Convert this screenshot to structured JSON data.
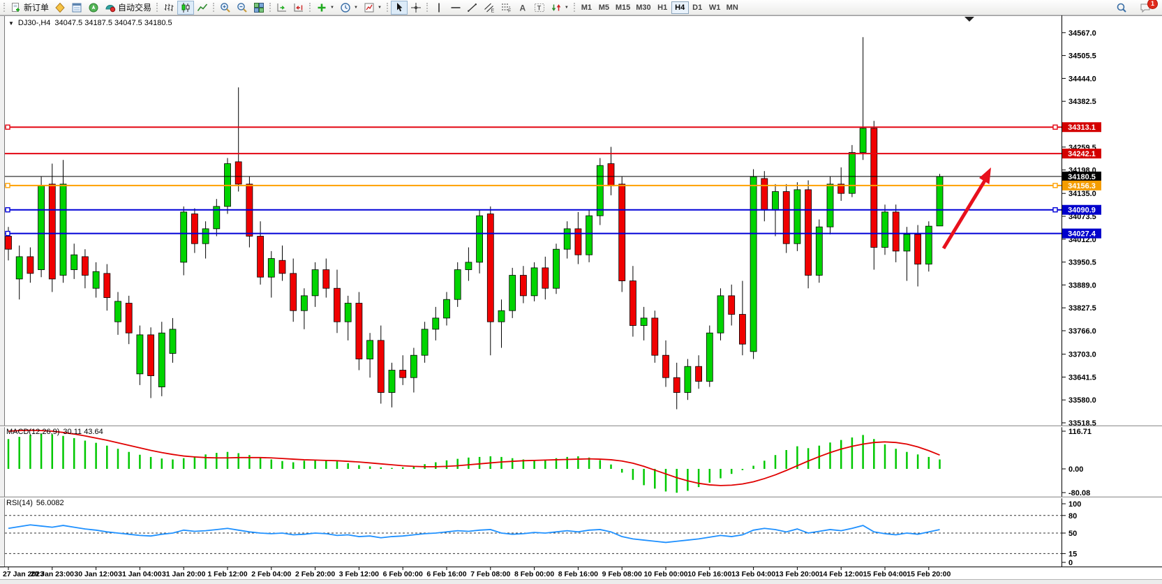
{
  "toolbar": {
    "groups": [
      {
        "buttons": [
          {
            "name": "new-order-button",
            "icon": "new-order",
            "label": "新订单"
          },
          {
            "name": "market-watch-button",
            "icon": "market-watch"
          },
          {
            "name": "data-window-button",
            "icon": "data-window"
          },
          {
            "name": "navigator-button",
            "icon": "navigator"
          },
          {
            "name": "auto-trading-button",
            "icon": "auto-trading",
            "label": "自动交易"
          }
        ]
      },
      {
        "buttons": [
          {
            "name": "bar-chart-button",
            "icon": "bars-chart"
          },
          {
            "name": "candlestick-chart-button",
            "icon": "candles-chart",
            "active": true
          },
          {
            "name": "line-chart-button",
            "icon": "line-chart"
          }
        ]
      },
      {
        "buttons": [
          {
            "name": "zoom-in-button",
            "icon": "zoom-in"
          },
          {
            "name": "zoom-out-button",
            "icon": "zoom-out"
          },
          {
            "name": "tile-windows-button",
            "icon": "tile-windows"
          }
        ]
      },
      {
        "buttons": [
          {
            "name": "auto-scroll-button",
            "icon": "auto-scroll"
          },
          {
            "name": "chart-shift-button",
            "icon": "chart-shift"
          }
        ]
      },
      {
        "buttons": [
          {
            "name": "indicators-button",
            "icon": "indicators",
            "caret": true
          },
          {
            "name": "periods-button",
            "icon": "periods",
            "caret": true
          },
          {
            "name": "templates-button",
            "icon": "templates",
            "caret": true
          }
        ]
      },
      {
        "buttons": [
          {
            "name": "cursor-button",
            "icon": "cursor",
            "active": true
          },
          {
            "name": "crosshair-button",
            "icon": "crosshair"
          }
        ]
      },
      {
        "buttons": [
          {
            "name": "vertical-line-button",
            "icon": "vertical-line"
          },
          {
            "name": "horizontal-line-button",
            "icon": "horizontal-line"
          },
          {
            "name": "trendline-button",
            "icon": "trendline"
          },
          {
            "name": "equidistant-channel-button",
            "icon": "equidistant-channel"
          },
          {
            "name": "fibonacci-button",
            "icon": "fibonacci"
          },
          {
            "name": "text-button",
            "icon": "text"
          },
          {
            "name": "text-label-button",
            "icon": "text-label"
          },
          {
            "name": "arrows-button",
            "icon": "shapes",
            "caret": true
          }
        ]
      }
    ],
    "timeframes": {
      "items": [
        "M1",
        "M5",
        "M15",
        "M30",
        "H1",
        "H4",
        "D1",
        "W1",
        "MN"
      ],
      "active": "H4"
    },
    "right": [
      {
        "name": "search-button",
        "icon": "search"
      },
      {
        "name": "chat-button",
        "icon": "chat",
        "badge": "1"
      }
    ]
  },
  "chart_header": {
    "dropdown_glyph": "▼",
    "symbol_period": "DJ30-,H4",
    "ohlc": "34047.5 34187.5 34047.5 34180.5"
  },
  "price_axis": {
    "ticks": [
      "34567.0",
      "34505.5",
      "34444.0",
      "34382.5",
      "34259.5",
      "34198.0",
      "34135.0",
      "34073.5",
      "34012.0",
      "33950.5",
      "33889.0",
      "33827.5",
      "33766.0",
      "33703.0",
      "33641.5",
      "33580.0",
      "33518.5"
    ]
  },
  "lines": [
    {
      "price": 34313.1,
      "label": "34313.1",
      "color": "#e30613",
      "width": 2,
      "label_bg": "#d40000",
      "handles": "both"
    },
    {
      "price": 34242.1,
      "label": "34242.1",
      "color": "#e30613",
      "width": 2,
      "label_bg": "#d40000",
      "handles": "none"
    },
    {
      "price": 34180.5,
      "label": "34180.5",
      "color": "#000000",
      "width": 1,
      "label_bg": "#000000",
      "handles": "none"
    },
    {
      "price": 34156.3,
      "label": "34156.3",
      "color": "#ffa000",
      "width": 2,
      "label_bg": "#f59d00",
      "handles": "both"
    },
    {
      "price": 34090.9,
      "label": "34090.9",
      "color": "#0000d8",
      "width": 2,
      "label_bg": "#0000cc",
      "handles": "both"
    },
    {
      "price": 34027.4,
      "label": "34027.4",
      "color": "#0000d8",
      "width": 2,
      "label_bg": "#0000cc",
      "handles": "left"
    }
  ],
  "chart_data": {
    "type": "candlestick",
    "symbol": "DJ30-",
    "timeframe": "H4",
    "x_labels": [
      "27 Jan 2023",
      "29 Jan 23:00",
      "30 Jan 12:00",
      "31 Jan 04:00",
      "31 Jan 20:00",
      "1 Feb 12:00",
      "2 Feb 04:00",
      "2 Feb 20:00",
      "3 Feb 12:00",
      "6 Feb 00:00",
      "6 Feb 16:00",
      "7 Feb 08:00",
      "8 Feb 00:00",
      "8 Feb 16:00",
      "9 Feb 08:00",
      "10 Feb 00:00",
      "10 Feb 16:00",
      "13 Feb 04:00",
      "13 Feb 20:00",
      "14 Feb 12:00",
      "15 Feb 04:00",
      "15 Feb 20:00"
    ],
    "x_label_every": 4,
    "ylim": [
      33470,
      34610
    ],
    "grid": false,
    "candles": [
      [
        34020,
        34045,
        33955,
        33985
      ],
      [
        33905,
        33995,
        33850,
        33965
      ],
      [
        33965,
        33990,
        33895,
        33920
      ],
      [
        33930,
        34180,
        33910,
        34155
      ],
      [
        34160,
        34215,
        33870,
        33905
      ],
      [
        33915,
        34225,
        33895,
        34160
      ],
      [
        33930,
        34000,
        33905,
        33970
      ],
      [
        33965,
        33985,
        33880,
        33915
      ],
      [
        33880,
        33950,
        33855,
        33925
      ],
      [
        33920,
        33945,
        33820,
        33855
      ],
      [
        33790,
        33870,
        33755,
        33845
      ],
      [
        33840,
        33860,
        33730,
        33760
      ],
      [
        33650,
        33780,
        33620,
        33755
      ],
      [
        33755,
        33775,
        33585,
        33645
      ],
      [
        33615,
        33790,
        33590,
        33760
      ],
      [
        33705,
        33800,
        33680,
        33770
      ],
      [
        33950,
        34100,
        33915,
        34085
      ],
      [
        34080,
        34095,
        33975,
        34000
      ],
      [
        34000,
        34060,
        33960,
        34040
      ],
      [
        34040,
        34120,
        34020,
        34100
      ],
      [
        34100,
        34230,
        34080,
        34215
      ],
      [
        34220,
        34420,
        34140,
        34160
      ],
      [
        34160,
        34180,
        33990,
        34020
      ],
      [
        34020,
        34060,
        33890,
        33910
      ],
      [
        33910,
        33980,
        33855,
        33960
      ],
      [
        33955,
        33995,
        33900,
        33920
      ],
      [
        33920,
        33960,
        33790,
        33820
      ],
      [
        33820,
        33880,
        33770,
        33860
      ],
      [
        33860,
        33950,
        33830,
        33930
      ],
      [
        33930,
        33960,
        33855,
        33880
      ],
      [
        33880,
        33930,
        33760,
        33790
      ],
      [
        33790,
        33860,
        33740,
        33840
      ],
      [
        33840,
        33870,
        33660,
        33690
      ],
      [
        33690,
        33760,
        33640,
        33740
      ],
      [
        33740,
        33780,
        33570,
        33600
      ],
      [
        33600,
        33680,
        33560,
        33660
      ],
      [
        33660,
        33700,
        33620,
        33640
      ],
      [
        33640,
        33720,
        33600,
        33700
      ],
      [
        33700,
        33790,
        33680,
        33770
      ],
      [
        33770,
        33830,
        33740,
        33800
      ],
      [
        33800,
        33870,
        33780,
        33850
      ],
      [
        33850,
        33950,
        33830,
        33930
      ],
      [
        33930,
        33990,
        33900,
        33950
      ],
      [
        33950,
        34090,
        33920,
        34075
      ],
      [
        34080,
        34100,
        33700,
        33790
      ],
      [
        33790,
        33850,
        33720,
        33820
      ],
      [
        33820,
        33935,
        33800,
        33915
      ],
      [
        33915,
        33940,
        33840,
        33860
      ],
      [
        33860,
        33950,
        33845,
        33935
      ],
      [
        33935,
        33965,
        33850,
        33880
      ],
      [
        33880,
        34000,
        33865,
        33985
      ],
      [
        33985,
        34060,
        33960,
        34040
      ],
      [
        34040,
        34085,
        33945,
        33970
      ],
      [
        33970,
        34090,
        33950,
        34075
      ],
      [
        34075,
        34230,
        34050,
        34210
      ],
      [
        34215,
        34260,
        34130,
        34155
      ],
      [
        34160,
        34180,
        33870,
        33900
      ],
      [
        33900,
        33940,
        33750,
        33780
      ],
      [
        33780,
        33830,
        33740,
        33800
      ],
      [
        33800,
        33820,
        33680,
        33700
      ],
      [
        33700,
        33740,
        33615,
        33640
      ],
      [
        33640,
        33680,
        33555,
        33600
      ],
      [
        33600,
        33690,
        33580,
        33670
      ],
      [
        33670,
        33700,
        33610,
        33630
      ],
      [
        33630,
        33780,
        33615,
        33760
      ],
      [
        33760,
        33880,
        33740,
        33860
      ],
      [
        33860,
        33890,
        33780,
        33810
      ],
      [
        33810,
        33900,
        33700,
        33730
      ],
      [
        33710,
        34200,
        33690,
        34180
      ],
      [
        34175,
        34195,
        34060,
        34090
      ],
      [
        34090,
        34160,
        34020,
        34140
      ],
      [
        34140,
        34160,
        33975,
        34000
      ],
      [
        34000,
        34165,
        33980,
        34145
      ],
      [
        34145,
        34170,
        33880,
        33915
      ],
      [
        33915,
        34065,
        33895,
        34045
      ],
      [
        34045,
        34180,
        34025,
        34160
      ],
      [
        34160,
        34205,
        34115,
        34135
      ],
      [
        34135,
        34265,
        34125,
        34245
      ],
      [
        34245,
        34555,
        34225,
        34310
      ],
      [
        34310,
        34330,
        33930,
        33990
      ],
      [
        33990,
        34105,
        33970,
        34085
      ],
      [
        34085,
        34105,
        33950,
        33980
      ],
      [
        33980,
        34045,
        33900,
        34025
      ],
      [
        34025,
        34050,
        33885,
        33945
      ],
      [
        33945,
        34060,
        33925,
        34047
      ],
      [
        34047.5,
        34187.5,
        34047.5,
        34180.5
      ]
    ]
  },
  "macd": {
    "title": "MACD(12,26,9)",
    "values": "30.11 43.64",
    "axis": [
      "116.71",
      "0.00",
      "-80.08"
    ],
    "histogram": [
      95,
      102,
      108,
      112,
      110,
      105,
      98,
      90,
      83,
      74,
      64,
      54,
      45,
      38,
      33,
      30,
      34,
      40,
      46,
      51,
      54,
      50,
      44,
      37,
      30,
      25,
      21,
      26,
      30,
      28,
      24,
      18,
      12,
      8,
      5,
      3,
      5,
      9,
      15,
      21,
      27,
      32,
      36,
      38,
      40,
      38,
      34,
      30,
      28,
      30,
      34,
      38,
      40,
      36,
      28,
      14,
      -12,
      -35,
      -52,
      -63,
      -72,
      -76,
      -70,
      -58,
      -44,
      -30,
      -16,
      -4,
      10,
      26,
      44,
      60,
      72,
      66,
      74,
      84,
      92,
      100,
      108,
      95,
      78,
      64,
      54,
      46,
      38,
      30
    ],
    "signal": [
      120,
      122,
      123,
      122,
      120,
      116,
      111,
      105,
      98,
      91,
      83,
      75,
      67,
      59,
      52,
      46,
      41,
      38,
      36,
      35,
      35,
      36,
      36,
      36,
      35,
      33,
      31,
      29,
      28,
      27,
      26,
      24,
      22,
      19,
      16,
      13,
      10,
      8,
      7,
      7,
      8,
      10,
      13,
      16,
      19,
      22,
      24,
      26,
      27,
      28,
      29,
      30,
      31,
      32,
      31,
      29,
      25,
      18,
      8,
      -4,
      -16,
      -28,
      -38,
      -46,
      -51,
      -53,
      -52,
      -48,
      -41,
      -31,
      -19,
      -5,
      10,
      25,
      39,
      52,
      63,
      72,
      79,
      84,
      86,
      84,
      79,
      70,
      58,
      44
    ]
  },
  "rsi": {
    "title": "RSI(14)",
    "value": "56.0082",
    "levels": [
      "100",
      "80",
      "50",
      "15",
      "0"
    ],
    "dashed_levels": [
      80,
      50,
      15
    ],
    "values": [
      58,
      61,
      64,
      62,
      60,
      63,
      60,
      57,
      55,
      52,
      50,
      48,
      46,
      45,
      48,
      50,
      55,
      53,
      54,
      56,
      58,
      55,
      52,
      50,
      49,
      50,
      47,
      48,
      50,
      49,
      46,
      47,
      44,
      45,
      42,
      44,
      45,
      47,
      49,
      50,
      52,
      54,
      53,
      55,
      56,
      50,
      48,
      49,
      51,
      50,
      52,
      54,
      52,
      55,
      56,
      52,
      44,
      40,
      38,
      36,
      34,
      36,
      38,
      40,
      43,
      46,
      44,
      47,
      55,
      58,
      56,
      52,
      57,
      50,
      53,
      56,
      54,
      58,
      63,
      52,
      49,
      47,
      50,
      48,
      52,
      56
    ]
  },
  "colors": {
    "candle_up": "#00d400",
    "candle_down": "#f00000",
    "wick": "#000000",
    "macd_hist": "#00c800",
    "macd_signal": "#e00000",
    "rsi_line": "#1E90FF",
    "arrow": "#e8101c",
    "axis_text": "#000000"
  }
}
